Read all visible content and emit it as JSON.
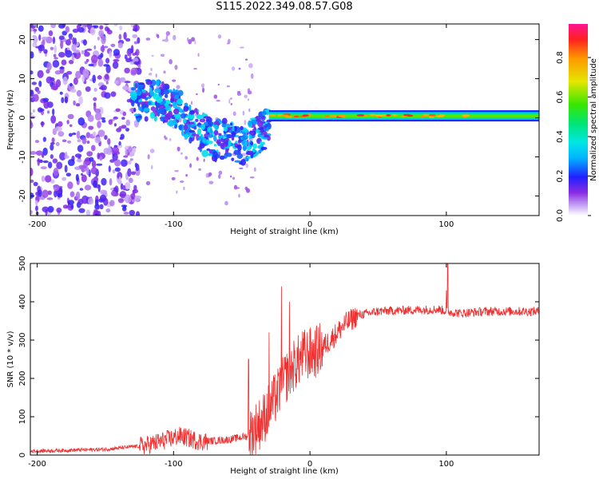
{
  "title": "S115.2022.349.08.57.G08",
  "colors": {
    "snr_line": "#ee3030",
    "frame": "#000000"
  },
  "chart_data": [
    {
      "type": "heatmap",
      "xlabel": "Height of straight line (km)",
      "ylabel": "Frequency (Hz)",
      "xlim": [
        -205,
        168
      ],
      "ylim": [
        -25,
        24
      ],
      "xticks": [
        -200,
        -100,
        0,
        100
      ],
      "yticks": [
        -20,
        -10,
        0,
        10,
        20
      ],
      "grid": false,
      "colorbar": {
        "label": "Normalized spectral amplitude",
        "range": [
          0,
          0.97
        ],
        "ticks": [
          0.0,
          0.2,
          0.4,
          0.6,
          0.8
        ]
      },
      "segments": [
        {
          "name": "scattered-noise",
          "x_range": [
            -205,
            -125
          ],
          "freq_spread": 24,
          "amplitude": 0.12
        },
        {
          "name": "descending-trace",
          "points": [
            [
              -130,
              4
            ],
            [
              -115,
              5
            ],
            [
              -100,
              3
            ],
            [
              -90,
              0
            ],
            [
              -80,
              -4
            ],
            [
              -70,
              -6
            ],
            [
              -60,
              -5
            ],
            [
              -50,
              -7
            ],
            [
              -40,
              -5
            ],
            [
              -30,
              -2
            ]
          ],
          "amplitude": 0.3
        },
        {
          "name": "stable-carrier",
          "x_range": [
            -30,
            168
          ],
          "frequency": 0.5,
          "amplitude": 0.65,
          "peak_amplitude": 0.95
        }
      ]
    },
    {
      "type": "line",
      "xlabel": "Height of straight line (km)",
      "ylabel": "SNR (10 * v/v)",
      "xlim": [
        -205,
        168
      ],
      "ylim": [
        0,
        500
      ],
      "xticks": [
        -200,
        -100,
        0,
        100
      ],
      "yticks": [
        0,
        100,
        200,
        300,
        400,
        500
      ],
      "grid": false,
      "series": [
        {
          "trend": [
            [
              -205,
              10
            ],
            [
              -150,
              15
            ],
            [
              -120,
              25
            ],
            [
              -95,
              50
            ],
            [
              -80,
              35
            ],
            [
              -60,
              40
            ],
            [
              -45,
              50
            ],
            [
              -35,
              90
            ],
            [
              -25,
              150
            ],
            [
              -15,
              220
            ],
            [
              -5,
              260
            ],
            [
              5,
              270
            ],
            [
              15,
              300
            ],
            [
              25,
              340
            ],
            [
              35,
              365
            ],
            [
              50,
              375
            ],
            [
              70,
              378
            ],
            [
              95,
              380
            ],
            [
              100,
              375
            ],
            [
              110,
              370
            ],
            [
              130,
              375
            ],
            [
              168,
              375
            ]
          ],
          "peaks": [
            [
              -45,
              250
            ],
            [
              -30,
              320
            ],
            [
              -21,
              440
            ],
            [
              -15,
              400
            ],
            [
              101,
              500
            ],
            [
              100,
              430
            ]
          ]
        }
      ]
    }
  ]
}
